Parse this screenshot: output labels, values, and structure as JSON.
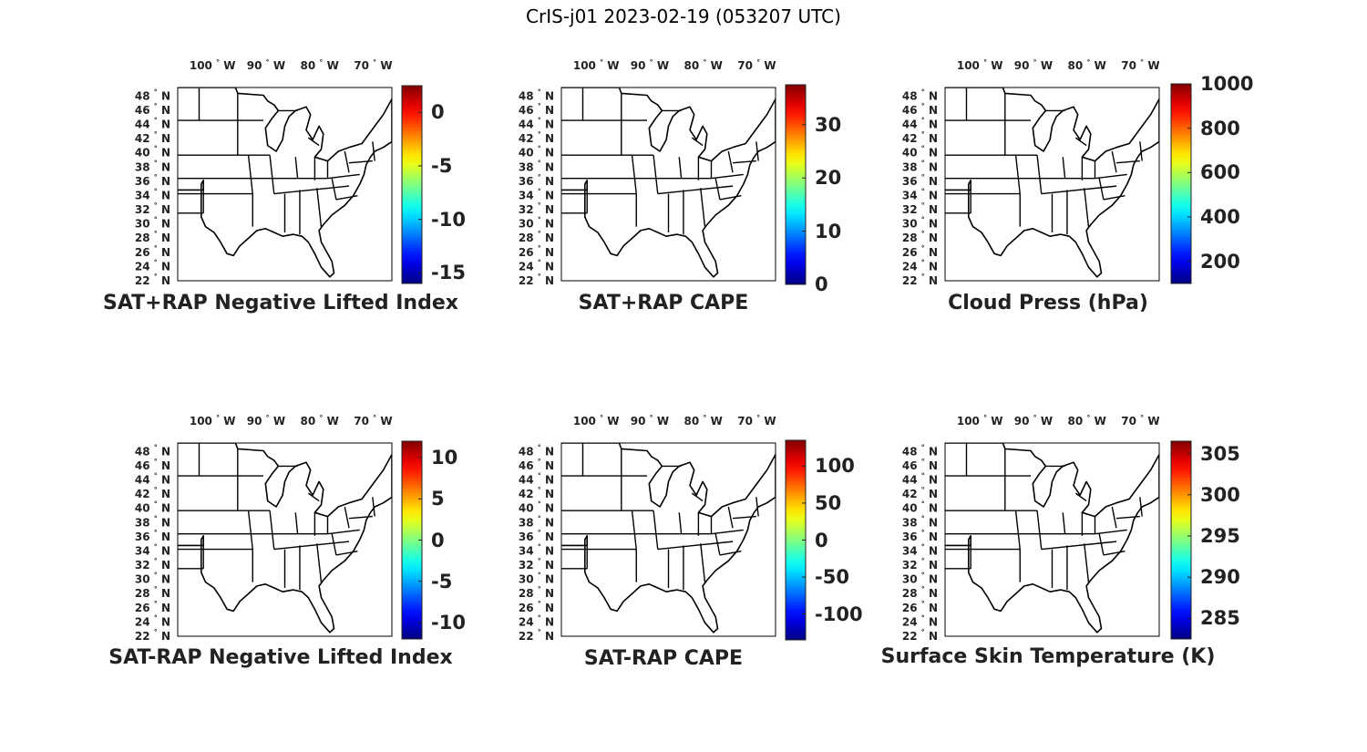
{
  "figure_title": "CrIS-j01 2023-02-19 (053207 UTC)",
  "lon_labels": [
    {
      "deg": "100",
      "hemi": "W",
      "value": -100
    },
    {
      "deg": "90",
      "hemi": "W",
      "value": -90
    },
    {
      "deg": "80",
      "hemi": "W",
      "value": -80
    },
    {
      "deg": "70",
      "hemi": "W",
      "value": -70
    }
  ],
  "lat_labels": [
    {
      "deg": "48",
      "hemi": "N",
      "value": 48
    },
    {
      "deg": "46",
      "hemi": "N",
      "value": 46
    },
    {
      "deg": "44",
      "hemi": "N",
      "value": 44
    },
    {
      "deg": "42",
      "hemi": "N",
      "value": 42
    },
    {
      "deg": "40",
      "hemi": "N",
      "value": 40
    },
    {
      "deg": "38",
      "hemi": "N",
      "value": 38
    },
    {
      "deg": "36",
      "hemi": "N",
      "value": 36
    },
    {
      "deg": "34",
      "hemi": "N",
      "value": 34
    },
    {
      "deg": "32",
      "hemi": "N",
      "value": 32
    },
    {
      "deg": "30",
      "hemi": "N",
      "value": 30
    },
    {
      "deg": "28",
      "hemi": "N",
      "value": 28
    },
    {
      "deg": "26",
      "hemi": "N",
      "value": 26
    },
    {
      "deg": "24",
      "hemi": "N",
      "value": 24
    },
    {
      "deg": "22",
      "hemi": "N",
      "value": 22
    }
  ],
  "colormap": "jet",
  "degree_symbol": "°",
  "panels": [
    {
      "id": "sat-rap-sum-nli",
      "title": "SAT+RAP Negative Lifted Index",
      "colorbar": {
        "min": -16,
        "max": 2.5,
        "ticks": [
          {
            "label": "0",
            "value": 0
          },
          {
            "label": "-5",
            "value": -5
          },
          {
            "label": "-10",
            "value": -10
          },
          {
            "label": "-15",
            "value": -15
          }
        ]
      }
    },
    {
      "id": "sat-rap-sum-cape",
      "title": "SAT+RAP CAPE",
      "colorbar": {
        "min": 0,
        "max": 37.5,
        "ticks": [
          {
            "label": "30",
            "value": 30
          },
          {
            "label": "20",
            "value": 20
          },
          {
            "label": "10",
            "value": 10
          },
          {
            "label": "0",
            "value": 0
          }
        ]
      }
    },
    {
      "id": "cloud-press",
      "title": "Cloud Press (hPa)",
      "colorbar": {
        "min": 100,
        "max": 1000,
        "ticks": [
          {
            "label": "1000",
            "value": 1000
          },
          {
            "label": "800",
            "value": 800
          },
          {
            "label": "600",
            "value": 600
          },
          {
            "label": "400",
            "value": 400
          },
          {
            "label": "200",
            "value": 200
          }
        ]
      }
    },
    {
      "id": "sat-rap-diff-nli",
      "title": "SAT-RAP Negative Lifted Index",
      "colorbar": {
        "min": -12,
        "max": 12,
        "ticks": [
          {
            "label": "10",
            "value": 10
          },
          {
            "label": "5",
            "value": 5
          },
          {
            "label": "0",
            "value": 0
          },
          {
            "label": "-5",
            "value": -5
          },
          {
            "label": "-10",
            "value": -10
          }
        ]
      }
    },
    {
      "id": "sat-rap-diff-cape",
      "title": "SAT-RAP CAPE",
      "colorbar": {
        "min": -135,
        "max": 135,
        "ticks": [
          {
            "label": "100",
            "value": 100
          },
          {
            "label": "50",
            "value": 50
          },
          {
            "label": "0",
            "value": 0
          },
          {
            "label": "-50",
            "value": -50
          },
          {
            "label": "-100",
            "value": -100
          }
        ]
      }
    },
    {
      "id": "surface-skin-temp",
      "title": "Surface Skin Temperature (K)",
      "colorbar": {
        "min": 282.5,
        "max": 306.5,
        "ticks": [
          {
            "label": "305",
            "value": 305
          },
          {
            "label": "300",
            "value": 300
          },
          {
            "label": "295",
            "value": 295
          },
          {
            "label": "290",
            "value": 290
          },
          {
            "label": "285",
            "value": 285
          }
        ]
      }
    }
  ]
}
